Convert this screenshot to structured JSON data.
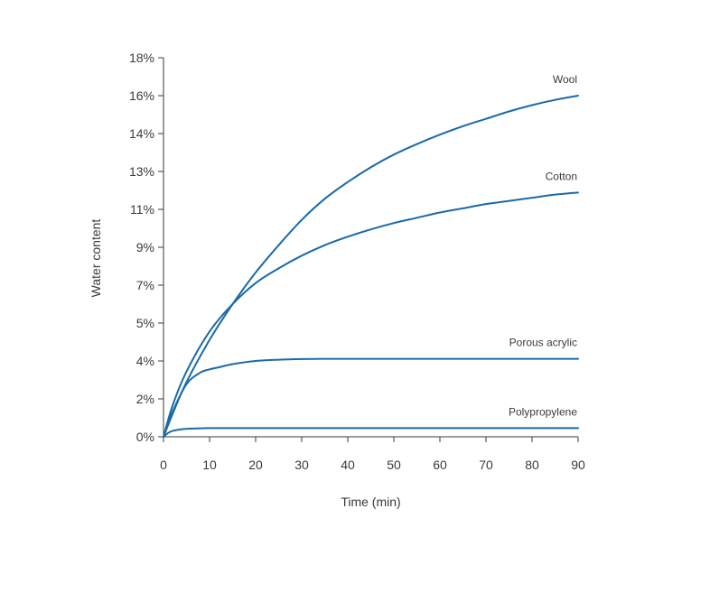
{
  "chart_data": {
    "type": "line",
    "title": "",
    "xlabel": "Time (min)",
    "ylabel": "Water content",
    "xlim": [
      0,
      90
    ],
    "ylim": [
      0,
      18
    ],
    "x_ticks": [
      0,
      10,
      20,
      30,
      40,
      50,
      60,
      70,
      80,
      90
    ],
    "x_tick_labels": [
      "0",
      "10",
      "20",
      "30",
      "40",
      "50",
      "60",
      "70",
      "80",
      "90"
    ],
    "y_ticks": [
      0,
      1.8,
      3.6,
      5.4,
      7.2,
      9.0,
      10.8,
      12.6,
      14.4,
      16.2,
      18.0
    ],
    "y_tick_labels": [
      "0%",
      "2%",
      "4%",
      "5%",
      "7%",
      "9%",
      "11%",
      "13%",
      "14%",
      "16%",
      "18%"
    ],
    "grid": false,
    "legend": "inline labels at right end of each line",
    "line_color": "#1a6aa8",
    "series": [
      {
        "name": "Wool",
        "x": [
          0,
          2,
          5,
          10,
          15,
          20,
          25,
          30,
          35,
          40,
          45,
          50,
          55,
          60,
          65,
          70,
          75,
          80,
          85,
          90
        ],
        "y": [
          0,
          1.1,
          2.6,
          4.6,
          6.3,
          7.8,
          9.1,
          10.3,
          11.3,
          12.1,
          12.8,
          13.4,
          13.9,
          14.35,
          14.75,
          15.1,
          15.45,
          15.75,
          16.0,
          16.2
        ]
      },
      {
        "name": "Cotton",
        "x": [
          0,
          2,
          5,
          10,
          15,
          20,
          25,
          30,
          35,
          40,
          45,
          50,
          55,
          60,
          65,
          70,
          75,
          80,
          85,
          90
        ],
        "y": [
          0,
          1.5,
          3.1,
          5.0,
          6.3,
          7.3,
          8.0,
          8.6,
          9.1,
          9.5,
          9.85,
          10.15,
          10.4,
          10.65,
          10.85,
          11.05,
          11.2,
          11.35,
          11.5,
          11.6
        ]
      },
      {
        "name": "Porous acrylic",
        "x": [
          0,
          2,
          5,
          8,
          10,
          12,
          15,
          20,
          25,
          30,
          35,
          40,
          50,
          60,
          70,
          80,
          90
        ],
        "y": [
          0,
          1.2,
          2.5,
          3.05,
          3.2,
          3.3,
          3.45,
          3.6,
          3.66,
          3.69,
          3.7,
          3.7,
          3.7,
          3.7,
          3.7,
          3.7,
          3.7
        ]
      },
      {
        "name": "Polypropylene",
        "x": [
          0,
          1,
          2,
          4,
          6,
          8,
          10,
          20,
          30,
          40,
          50,
          60,
          70,
          80,
          90
        ],
        "y": [
          0,
          0.18,
          0.28,
          0.36,
          0.39,
          0.4,
          0.41,
          0.41,
          0.41,
          0.41,
          0.41,
          0.41,
          0.41,
          0.41,
          0.41
        ]
      }
    ]
  }
}
